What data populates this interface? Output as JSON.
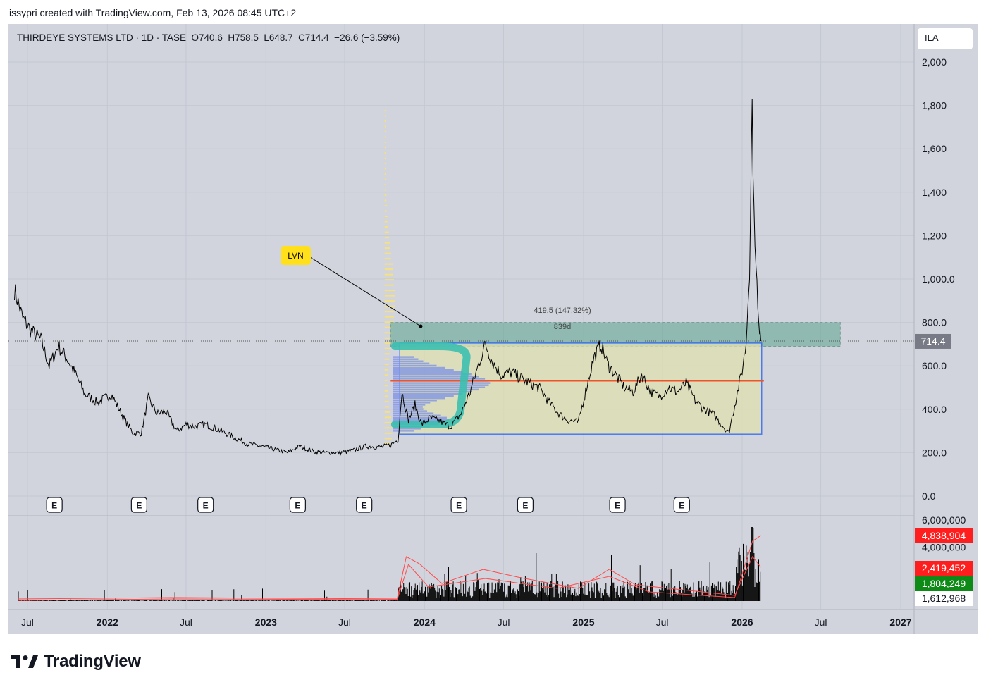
{
  "header": {
    "text": "issypri created with TradingView.com, Feb 13, 2026 08:45 UTC+2"
  },
  "symbol": {
    "name": "THIRDEYE SYSTEMS LTD",
    "interval": "1D",
    "exchange": "TASE",
    "open": "O740.6",
    "high": "H758.5",
    "low": "L648.7",
    "close": "C714.4",
    "change": "−26.6 (−3.59%)",
    "info_line": "THIRDEYE SYSTEMS LTD · 1D · TASE  O740.6  H758.5  L648.7  C714.4  −26.6 (−3.59%)"
  },
  "currency_label": "ILA",
  "logo_text": "TradingView",
  "colors": {
    "background": "#d1d4dc",
    "price_line": "#000000",
    "zone_fill": "#5ba58f",
    "range_fill": "#e0e0b0",
    "range_border": "#1e5bff",
    "poc_line": "#f0522a",
    "volume_profile_up": "#f7e17a",
    "volume_profile_blue": "#7b8fe6",
    "highlight_stroke": "#3cbfb0",
    "volume_ma": "#ff4a4a",
    "label_red": "#ff1e1e",
    "label_green": "#0e8a16",
    "lvn_badge": "#ffe01b"
  },
  "chart_data": {
    "type": "line",
    "title": "THIRDEYE SYSTEMS LTD · 1D · TASE",
    "xlabel": "",
    "ylabel": "",
    "x_ticks": [
      "Jul",
      "2022",
      "Jul",
      "2023",
      "Jul",
      "2024",
      "Jul",
      "2025",
      "Jul",
      "2026",
      "Jul",
      "2027"
    ],
    "y_ticks": [
      "0.0",
      "200.0",
      "400.0",
      "600.0",
      "800.0",
      "1,000.0",
      "1,200",
      "1,400",
      "1,600",
      "1,800",
      "2,000"
    ],
    "ylim": [
      0,
      2000
    ],
    "last_price_label": "714.4",
    "series": [
      {
        "name": "",
        "points": [
          [
            "2021-06-01",
            950
          ],
          [
            "2021-06-20",
            820
          ],
          [
            "2021-07-10",
            760
          ],
          [
            "2021-08-01",
            720
          ],
          [
            "2021-08-20",
            600
          ],
          [
            "2021-09-10",
            690
          ],
          [
            "2021-10-01",
            630
          ],
          [
            "2021-10-20",
            560
          ],
          [
            "2021-11-10",
            470
          ],
          [
            "2021-12-10",
            430
          ],
          [
            "2022-01-10",
            470
          ],
          [
            "2022-02-10",
            350
          ],
          [
            "2022-03-01",
            290
          ],
          [
            "2022-03-20",
            290
          ],
          [
            "2022-04-05",
            450
          ],
          [
            "2022-04-25",
            380
          ],
          [
            "2022-05-15",
            390
          ],
          [
            "2022-06-10",
            300
          ],
          [
            "2022-07-01",
            330
          ],
          [
            "2022-07-20",
            320
          ],
          [
            "2022-08-15",
            330
          ],
          [
            "2022-09-20",
            300
          ],
          [
            "2022-10-20",
            270
          ],
          [
            "2022-11-20",
            240
          ],
          [
            "2022-12-20",
            230
          ],
          [
            "2023-01-20",
            215
          ],
          [
            "2023-02-20",
            200
          ],
          [
            "2023-03-20",
            230
          ],
          [
            "2023-04-20",
            205
          ],
          [
            "2023-05-20",
            200
          ],
          [
            "2023-06-20",
            200
          ],
          [
            "2023-07-20",
            210
          ],
          [
            "2023-08-20",
            230
          ],
          [
            "2023-09-20",
            225
          ],
          [
            "2023-10-15",
            235
          ],
          [
            "2023-11-01",
            260
          ],
          [
            "2023-11-10",
            480
          ],
          [
            "2023-11-25",
            350
          ],
          [
            "2023-12-10",
            420
          ],
          [
            "2023-12-25",
            330
          ],
          [
            "2024-01-15",
            360
          ],
          [
            "2024-02-10",
            340
          ],
          [
            "2024-03-01",
            320
          ],
          [
            "2024-03-25",
            380
          ],
          [
            "2024-04-15",
            480
          ],
          [
            "2024-05-05",
            610
          ],
          [
            "2024-05-20",
            700
          ],
          [
            "2024-06-05",
            620
          ],
          [
            "2024-06-25",
            560
          ],
          [
            "2024-07-20",
            570
          ],
          [
            "2024-08-20",
            530
          ],
          [
            "2024-09-20",
            500
          ],
          [
            "2024-10-15",
            430
          ],
          [
            "2024-11-05",
            380
          ],
          [
            "2024-11-25",
            350
          ],
          [
            "2024-12-20",
            340
          ],
          [
            "2025-01-10",
            520
          ],
          [
            "2025-01-25",
            640
          ],
          [
            "2025-02-10",
            700
          ],
          [
            "2025-02-25",
            610
          ],
          [
            "2025-03-15",
            560
          ],
          [
            "2025-04-05",
            500
          ],
          [
            "2025-04-25",
            480
          ],
          [
            "2025-05-15",
            560
          ],
          [
            "2025-06-05",
            480
          ],
          [
            "2025-06-25",
            460
          ],
          [
            "2025-07-15",
            500
          ],
          [
            "2025-08-05",
            480
          ],
          [
            "2025-08-25",
            520
          ],
          [
            "2025-09-15",
            440
          ],
          [
            "2025-10-05",
            400
          ],
          [
            "2025-10-25",
            380
          ],
          [
            "2025-11-15",
            330
          ],
          [
            "2025-12-01",
            290
          ],
          [
            "2025-12-15",
            420
          ],
          [
            "2026-01-01",
            580
          ],
          [
            "2026-01-10",
            700
          ],
          [
            "2026-01-18",
            1050
          ],
          [
            "2026-01-24",
            1800
          ],
          [
            "2026-01-28",
            1300
          ],
          [
            "2026-02-02",
            1100
          ],
          [
            "2026-02-06",
            850
          ],
          [
            "2026-02-10",
            740
          ],
          [
            "2026-02-13",
            714.4
          ]
        ]
      }
    ],
    "annotations": {
      "measure_label": "419.5 (147.32%)",
      "measure_duration": "839d",
      "lvn_label": "LVN",
      "earnings_marker": "E",
      "zone": {
        "start": "2023-10-15",
        "end": "2026-08-15",
        "low": 690,
        "high": 800
      },
      "range_box": {
        "start": "2023-11-05",
        "end": "2026-02-15",
        "low": 285,
        "high": 705
      },
      "poc_level": 530,
      "earnings_dates": [
        "2021-09-01",
        "2022-03-15",
        "2022-08-15",
        "2023-03-15",
        "2023-08-15",
        "2024-03-20",
        "2024-08-20",
        "2025-03-20",
        "2025-08-15"
      ]
    },
    "volume": {
      "ylim": [
        0,
        6000000
      ],
      "y_ticks": [
        "6,000,000",
        "4,000,000"
      ],
      "labels": [
        {
          "value": "4,838,904",
          "style": "red"
        },
        {
          "value": "2,419,452",
          "style": "red"
        },
        {
          "value": "1,804,249",
          "style": "green"
        },
        {
          "value": "1,612,968",
          "style": "white"
        }
      ]
    }
  }
}
